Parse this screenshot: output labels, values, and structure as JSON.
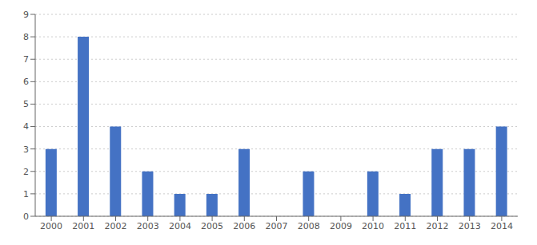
{
  "chart_data": {
    "type": "bar",
    "categories": [
      "2000",
      "2001",
      "2002",
      "2003",
      "2004",
      "2005",
      "2006",
      "2007",
      "2008",
      "2009",
      "2010",
      "2011",
      "2012",
      "2013",
      "2014"
    ],
    "values": [
      3,
      8,
      4,
      2,
      1,
      1,
      3,
      0,
      2,
      0,
      2,
      1,
      3,
      3,
      4
    ],
    "color": "#4472c4",
    "ylim": [
      0,
      9
    ],
    "yticks": [
      0,
      1,
      2,
      3,
      4,
      5,
      6,
      7,
      8,
      9
    ],
    "grid": true
  }
}
